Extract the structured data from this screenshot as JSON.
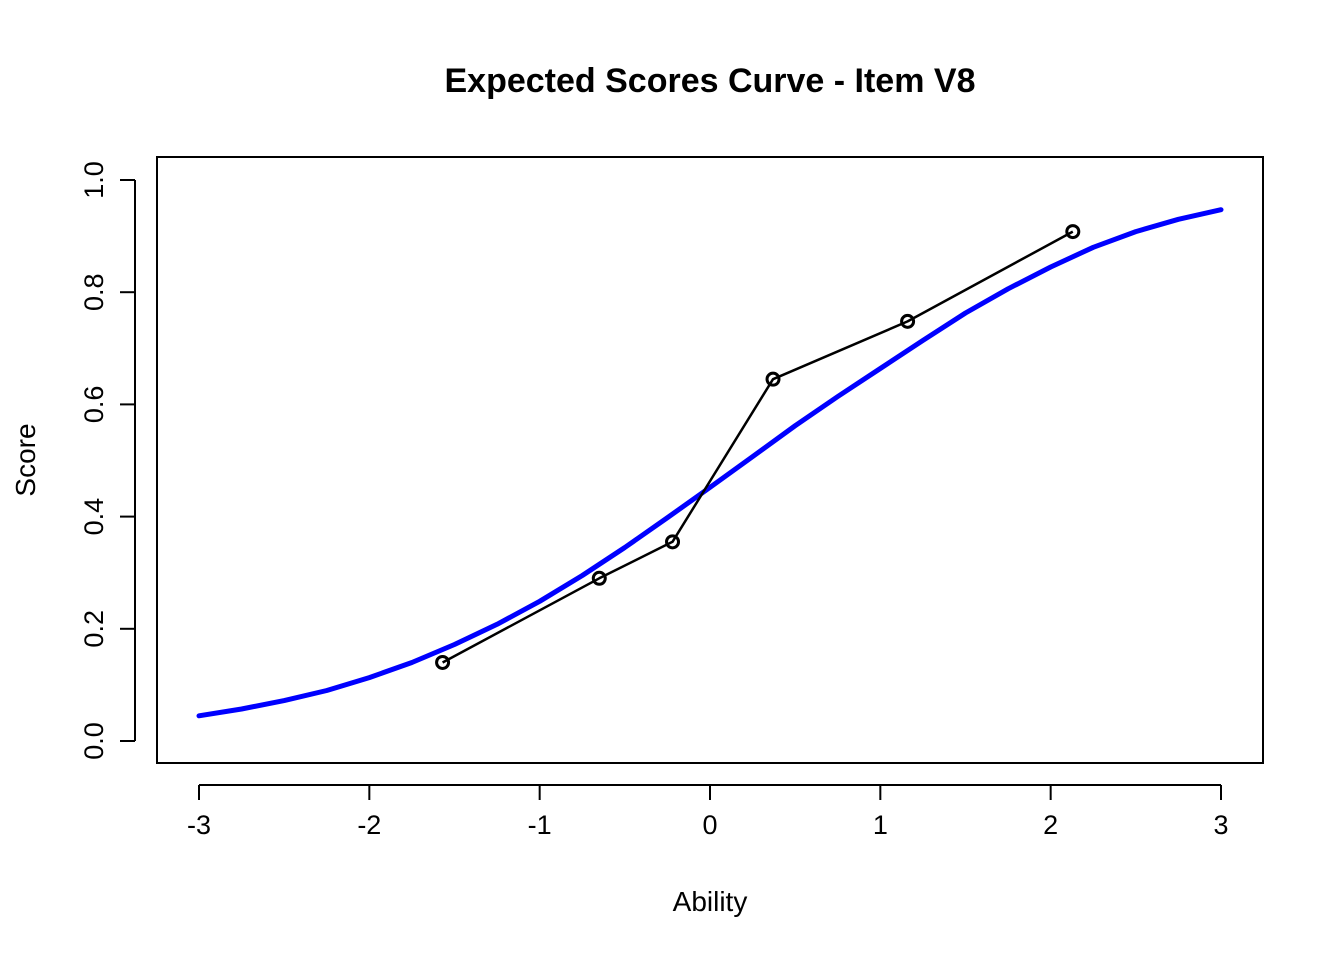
{
  "chart_data": {
    "type": "line",
    "title": "Expected Scores Curve - Item  V8",
    "xlabel": "Ability",
    "ylabel": "Score",
    "xlim": [
      -3,
      3
    ],
    "ylim": [
      0,
      1
    ],
    "x_ticks": [
      -3,
      -2,
      -1,
      0,
      1,
      2,
      3
    ],
    "x_tick_labels": [
      "-3",
      "-2",
      "-1",
      "0",
      "1",
      "2",
      "3"
    ],
    "y_ticks": [
      0,
      0.2,
      0.4,
      0.6,
      0.8,
      1
    ],
    "y_tick_labels": [
      "0.0",
      "0.2",
      "0.4",
      "0.6",
      "0.8",
      "1.0"
    ],
    "grid": false,
    "series": [
      {
        "kind": "curve",
        "color": "#0000ff",
        "x": [
          -3.0,
          -2.75,
          -2.5,
          -2.25,
          -2.0,
          -1.75,
          -1.5,
          -1.25,
          -1.0,
          -0.75,
          -0.5,
          -0.25,
          0.0,
          0.25,
          0.5,
          0.75,
          1.0,
          1.25,
          1.5,
          1.75,
          2.0,
          2.25,
          2.5,
          2.75,
          3.0
        ],
        "values": [
          0.045,
          0.057,
          0.072,
          0.09,
          0.113,
          0.14,
          0.172,
          0.208,
          0.249,
          0.295,
          0.345,
          0.398,
          0.452,
          0.507,
          0.562,
          0.614,
          0.664,
          0.714,
          0.763,
          0.806,
          0.845,
          0.88,
          0.908,
          0.93,
          0.947
        ]
      },
      {
        "kind": "observed",
        "color": "#000000",
        "x": [
          -1.57,
          -0.65,
          -0.22,
          0.37,
          1.16,
          2.13
        ],
        "values": [
          0.14,
          0.29,
          0.355,
          0.645,
          0.748,
          0.908
        ]
      }
    ]
  }
}
